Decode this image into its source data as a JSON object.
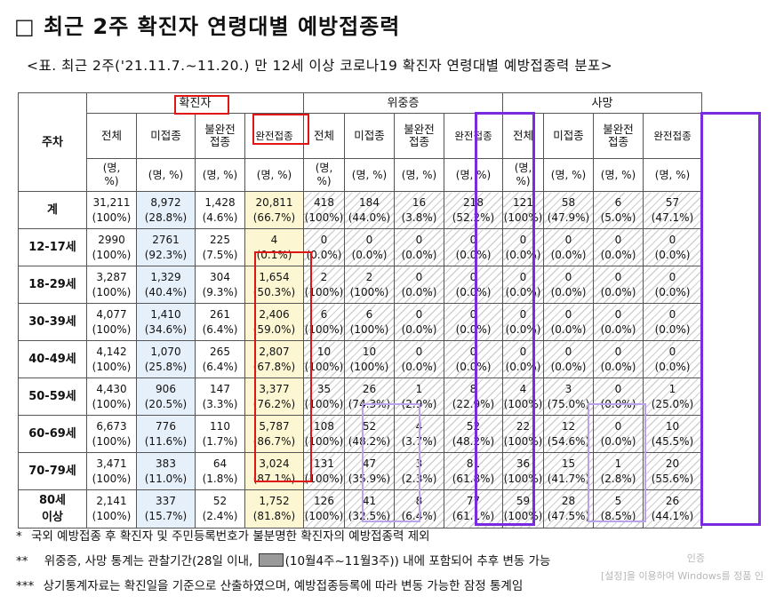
{
  "title": "□ 최근 2주 확진자 연령대별 예방접종력",
  "subtitle": "<표. 최근 2주('21.11.7.~11.20.) 만 12세 이상 코로나19 확진자 연령대별 예방접종력 분포>",
  "table": {
    "row_header": "주차",
    "groups": [
      "확진자",
      "위중증",
      "사망"
    ],
    "subheaders": [
      "전체",
      "미접종",
      "불완전\n접종",
      "완전접종"
    ],
    "units": [
      "(명,\n%)",
      "(명, %)",
      "(명, %)",
      "(명, %)"
    ],
    "rows": [
      {
        "label": "계",
        "cells": [
          [
            "31,211",
            "(100%)"
          ],
          [
            "8,972",
            "(28.8%)"
          ],
          [
            "1,428",
            "(4.6%)"
          ],
          [
            "20,811",
            "(66.7%)"
          ],
          [
            "418",
            "(100%)"
          ],
          [
            "184",
            "(44.0%)"
          ],
          [
            "16",
            "(3.8%)"
          ],
          [
            "218",
            "(52.2%)"
          ],
          [
            "121",
            "(100%)"
          ],
          [
            "58",
            "(47.9%)"
          ],
          [
            "6",
            "(5.0%)"
          ],
          [
            "57",
            "(47.1%)"
          ]
        ]
      },
      {
        "label": "12-17세",
        "cells": [
          [
            "2990",
            "(100%)"
          ],
          [
            "2761",
            "(92.3%)"
          ],
          [
            "225",
            "(7.5%)"
          ],
          [
            "4",
            "(0.1%)"
          ],
          [
            "0",
            "(0.0%)"
          ],
          [
            "0",
            "(0.0%)"
          ],
          [
            "0",
            "(0.0%)"
          ],
          [
            "0",
            "(0.0%)"
          ],
          [
            "0",
            "(0.0%)"
          ],
          [
            "0",
            "(0.0%)"
          ],
          [
            "0",
            "(0.0%)"
          ],
          [
            "0",
            "(0.0%)"
          ]
        ]
      },
      {
        "label": "18-29세",
        "cells": [
          [
            "3,287",
            "(100%)"
          ],
          [
            "1,329",
            "(40.4%)"
          ],
          [
            "304",
            "(9.3%)"
          ],
          [
            "1,654",
            "(50.3%)"
          ],
          [
            "2",
            "(100%)"
          ],
          [
            "2",
            "(100%)"
          ],
          [
            "0",
            "(0.0%)"
          ],
          [
            "0",
            "(0.0%)"
          ],
          [
            "0",
            "(0.0%)"
          ],
          [
            "0",
            "(0.0%)"
          ],
          [
            "0",
            "(0.0%)"
          ],
          [
            "0",
            "(0.0%)"
          ]
        ]
      },
      {
        "label": "30-39세",
        "cells": [
          [
            "4,077",
            "(100%)"
          ],
          [
            "1,410",
            "(34.6%)"
          ],
          [
            "261",
            "(6.4%)"
          ],
          [
            "2,406",
            "(59.0%)"
          ],
          [
            "6",
            "(100%)"
          ],
          [
            "6",
            "(100%)"
          ],
          [
            "0",
            "(0.0%)"
          ],
          [
            "0",
            "(0.0%)"
          ],
          [
            "0",
            "(0.0%)"
          ],
          [
            "0",
            "(0.0%)"
          ],
          [
            "0",
            "(0.0%)"
          ],
          [
            "0",
            "(0.0%)"
          ]
        ]
      },
      {
        "label": "40-49세",
        "cells": [
          [
            "4,142",
            "(100%)"
          ],
          [
            "1,070",
            "(25.8%)"
          ],
          [
            "265",
            "(6.4%)"
          ],
          [
            "2,807",
            "(67.8%)"
          ],
          [
            "10",
            "(100%)"
          ],
          [
            "10",
            "(100%)"
          ],
          [
            "0",
            "(0.0%)"
          ],
          [
            "0",
            "(0.0%)"
          ],
          [
            "0",
            "(0.0%)"
          ],
          [
            "0",
            "(0.0%)"
          ],
          [
            "0",
            "(0.0%)"
          ],
          [
            "0",
            "(0.0%)"
          ]
        ]
      },
      {
        "label": "50-59세",
        "cells": [
          [
            "4,430",
            "(100%)"
          ],
          [
            "906",
            "(20.5%)"
          ],
          [
            "147",
            "(3.3%)"
          ],
          [
            "3,377",
            "(76.2%)"
          ],
          [
            "35",
            "(100%)"
          ],
          [
            "26",
            "(74.3%)"
          ],
          [
            "1",
            "(2.9%)"
          ],
          [
            "8",
            "(22.9%)"
          ],
          [
            "4",
            "(100%)"
          ],
          [
            "3",
            "(75.0%)"
          ],
          [
            "0",
            "(0.0%)"
          ],
          [
            "1",
            "(25.0%)"
          ]
        ]
      },
      {
        "label": "60-69세",
        "cells": [
          [
            "6,673",
            "(100%)"
          ],
          [
            "776",
            "(11.6%)"
          ],
          [
            "110",
            "(1.7%)"
          ],
          [
            "5,787",
            "(86.7%)"
          ],
          [
            "108",
            "(100%)"
          ],
          [
            "52",
            "(48.2%)"
          ],
          [
            "4",
            "(3.7%)"
          ],
          [
            "52",
            "(48.2%)"
          ],
          [
            "22",
            "(100%)"
          ],
          [
            "12",
            "(54.6%)"
          ],
          [
            "0",
            "(0.0%)"
          ],
          [
            "10",
            "(45.5%)"
          ]
        ]
      },
      {
        "label": "70-79세",
        "cells": [
          [
            "3,471",
            "(100%)"
          ],
          [
            "383",
            "(11.0%)"
          ],
          [
            "64",
            "(1.8%)"
          ],
          [
            "3,024",
            "(87.1%)"
          ],
          [
            "131",
            "(100%)"
          ],
          [
            "47",
            "(35.9%)"
          ],
          [
            "3",
            "(2.3%)"
          ],
          [
            "81",
            "(61.8%)"
          ],
          [
            "36",
            "(100%)"
          ],
          [
            "15",
            "(41.7%)"
          ],
          [
            "1",
            "(2.8%)"
          ],
          [
            "20",
            "(55.6%)"
          ]
        ]
      },
      {
        "label": "80세\n이상",
        "cells": [
          [
            "2,141",
            "(100%)"
          ],
          [
            "337",
            "(15.7%)"
          ],
          [
            "52",
            "(2.4%)"
          ],
          [
            "1,752",
            "(81.8%)"
          ],
          [
            "126",
            "(100%)"
          ],
          [
            "41",
            "(32.5%)"
          ],
          [
            "8",
            "(6.4%)"
          ],
          [
            "77",
            "(61.1%)"
          ],
          [
            "59",
            "(100%)"
          ],
          [
            "28",
            "(47.5%)"
          ],
          [
            "5",
            "(8.5%)"
          ],
          [
            "26",
            "(44.1%)"
          ]
        ]
      }
    ]
  },
  "notes": {
    "n1_mark": "*",
    "n1_text": "국외 예방접종 후 확진자 및 주민등록번호가 불분명한 확진자의 예방접종력 제외",
    "n2_mark": "**",
    "n2_pre": "위중증, 사망 통계는 관찰기간(28일 이내,",
    "n2_post": "(10월4주~11월3주)) 내에 포함되어 추후 변동 가능",
    "n3_mark": "***",
    "n3_text": "상기통계자료는 확진일을 기준으로 산출하였으며, 예방접종등록에 따라 변동 가능한 잠정 통계임"
  },
  "watermark": {
    "line1": "인증",
    "line2": "[설정]을 이용하여 Windows를 정품 인"
  },
  "colors": {
    "red_highlight": "#e01515",
    "purple_highlight": "#7a2be0",
    "lavender_highlight": "#b9a3ec",
    "unvaccinated_fill": "#e6f0fb",
    "fully_vaccinated_fill": "#fdf6d2"
  }
}
